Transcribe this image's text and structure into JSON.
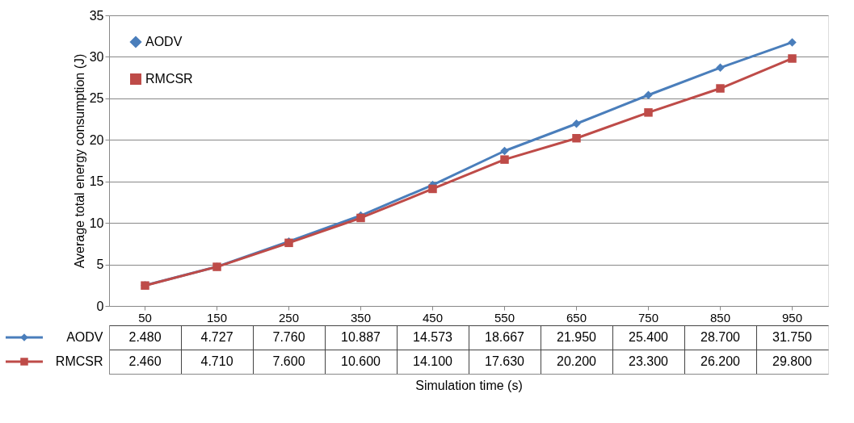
{
  "chart_data": {
    "type": "line",
    "xlabel": "Simulation time (s)",
    "ylabel": "Average total energy consumption (J)",
    "categories": [
      "50",
      "150",
      "250",
      "350",
      "450",
      "550",
      "650",
      "750",
      "850",
      "950"
    ],
    "series": [
      {
        "name": "AODV",
        "color": "#4a7ebb",
        "marker": "diamond",
        "values": [
          2.48,
          4.727,
          7.76,
          10.887,
          14.573,
          18.667,
          21.95,
          25.4,
          28.7,
          31.75
        ],
        "value_labels": [
          "2.480",
          "4.727",
          "7.760",
          "10.887",
          "14.573",
          "18.667",
          "21.950",
          "25.400",
          "28.700",
          "31.750"
        ]
      },
      {
        "name": "RMCSR",
        "color": "#be4b48",
        "marker": "square",
        "values": [
          2.46,
          4.71,
          7.6,
          10.6,
          14.1,
          17.63,
          20.2,
          23.3,
          26.2,
          29.8
        ],
        "value_labels": [
          "2.460",
          "4.710",
          "7.600",
          "10.600",
          "14.100",
          "17.630",
          "20.200",
          "23.300",
          "26.200",
          "29.800"
        ]
      }
    ],
    "ylim": [
      0,
      35
    ],
    "yticks": [
      0,
      5,
      10,
      15,
      20,
      25,
      30,
      35
    ],
    "grid": "y",
    "legend": "top left"
  }
}
